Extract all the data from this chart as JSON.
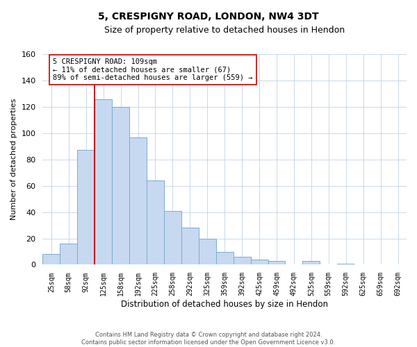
{
  "title": "5, CRESPIGNY ROAD, LONDON, NW4 3DT",
  "subtitle": "Size of property relative to detached houses in Hendon",
  "xlabel": "Distribution of detached houses by size in Hendon",
  "ylabel": "Number of detached properties",
  "bar_labels": [
    "25sqm",
    "58sqm",
    "92sqm",
    "125sqm",
    "158sqm",
    "192sqm",
    "225sqm",
    "258sqm",
    "292sqm",
    "325sqm",
    "359sqm",
    "392sqm",
    "425sqm",
    "459sqm",
    "492sqm",
    "525sqm",
    "559sqm",
    "592sqm",
    "625sqm",
    "659sqm",
    "692sqm"
  ],
  "bar_values": [
    8,
    16,
    87,
    126,
    120,
    97,
    64,
    41,
    28,
    20,
    10,
    6,
    4,
    3,
    0,
    3,
    0,
    1,
    0,
    0,
    0
  ],
  "bar_color": "#c6d9f0",
  "bar_edge_color": "#7aacce",
  "vline_color": "#cc0000",
  "vline_x_index": 2.5,
  "ylim": [
    0,
    160
  ],
  "yticks": [
    0,
    20,
    40,
    60,
    80,
    100,
    120,
    140,
    160
  ],
  "annotation_line1": "5 CRESPIGNY ROAD: 109sqm",
  "annotation_line2": "← 11% of detached houses are smaller (67)",
  "annotation_line3": "89% of semi-detached houses are larger (559) →",
  "footer_line1": "Contains HM Land Registry data © Crown copyright and database right 2024.",
  "footer_line2": "Contains public sector information licensed under the Open Government Licence v3.0.",
  "background_color": "#ffffff",
  "grid_color": "#c8d8e8"
}
